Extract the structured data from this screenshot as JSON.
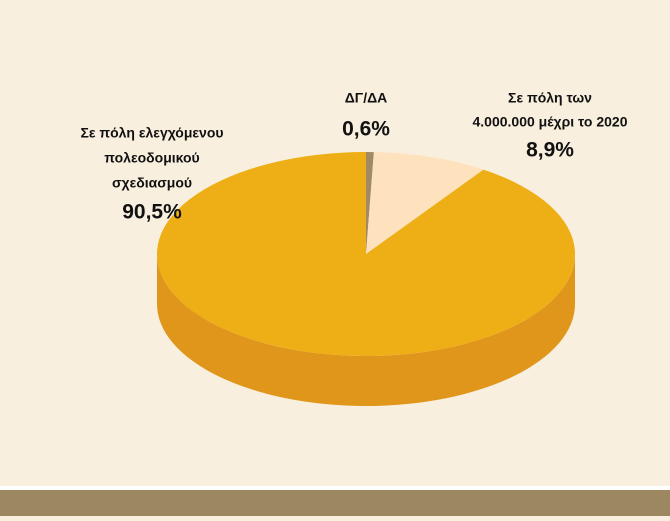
{
  "chart_data": {
    "type": "pie",
    "categories": [
      [
        "ΔΓ/ΔΑ"
      ],
      [
        "Σε πόλη των",
        "4.000.000 μέχρι  το 2020"
      ],
      [
        "Σε πόλη ελεγχόμενου",
        "πολεοδομικού",
        "σχεδιασμού"
      ]
    ],
    "values": [
      0.6,
      8.9,
      90.5
    ],
    "value_labels": [
      "0,6%",
      "8,9%",
      "90,5%"
    ],
    "colors": [
      "#a08a63",
      "#fde2bd",
      "#eeae15"
    ],
    "side_colors": [
      "#85714e",
      "#e8c89c",
      "#e0961a"
    ]
  }
}
